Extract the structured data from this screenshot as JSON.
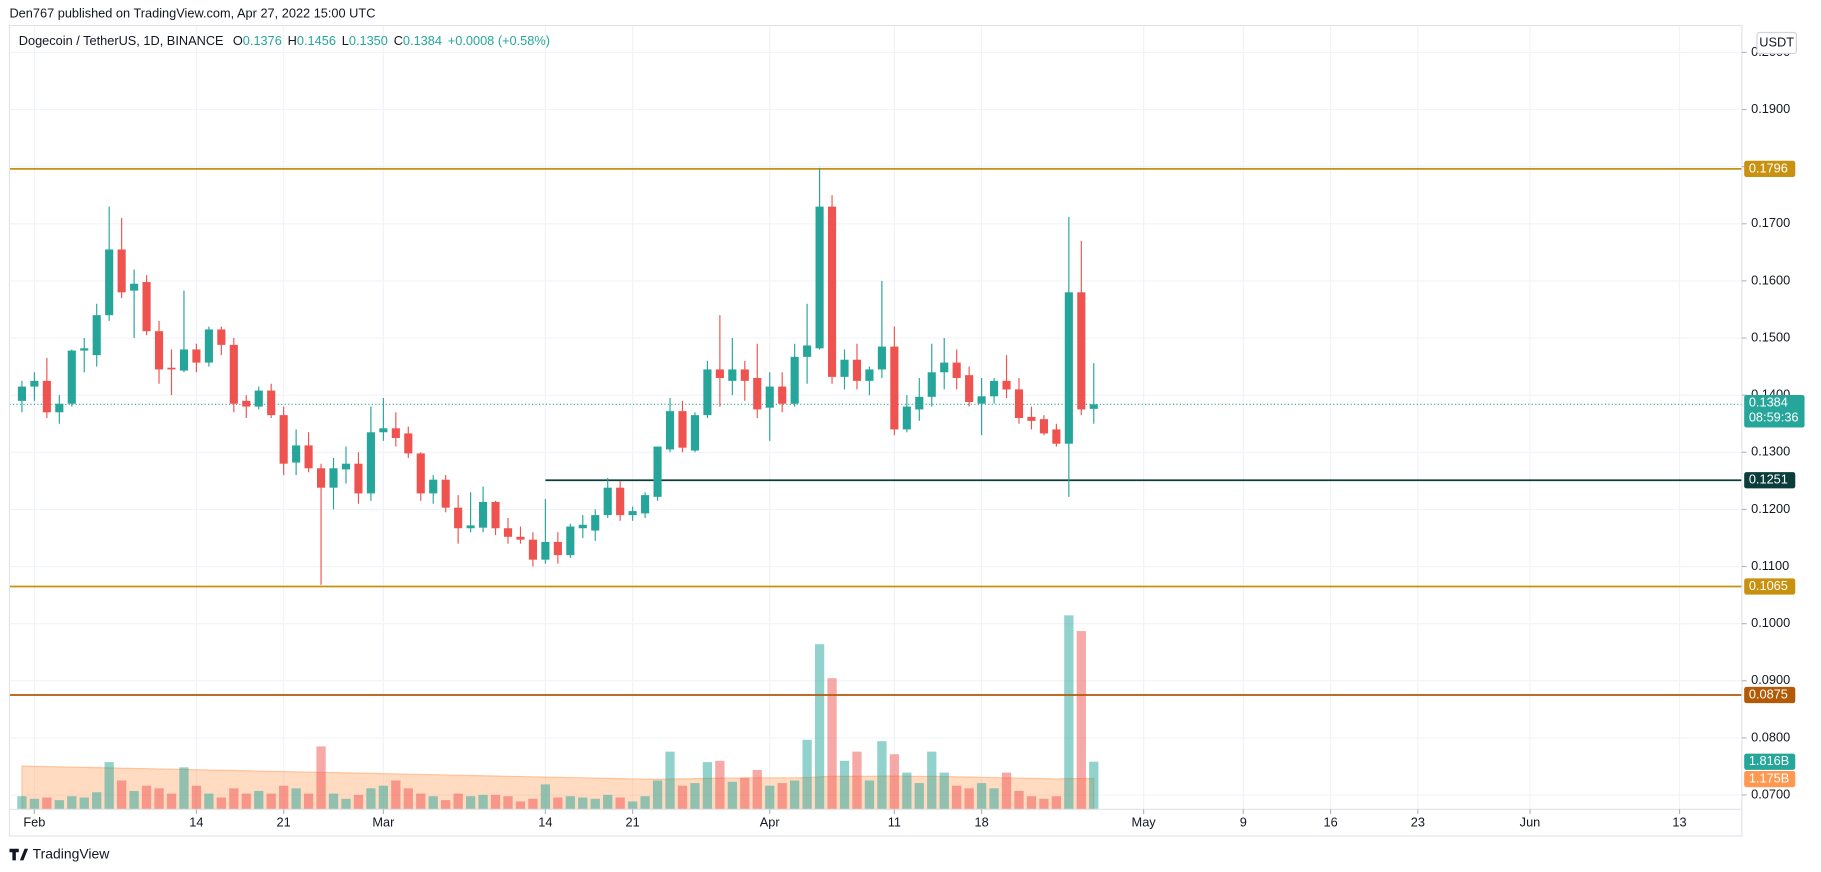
{
  "chart_data": {
    "type": "candlestick",
    "published": "Den767 published on TradingView.com, Apr 27, 2022 15:00 UTC",
    "symbol": "Dogecoin / TetherUS, 1D, BINANCE",
    "ohlc_header": [
      {
        "letter": "O",
        "text": "0.1376"
      },
      {
        "letter": "H",
        "text": "0.1456"
      },
      {
        "letter": "L",
        "text": "0.1350"
      },
      {
        "letter": "C",
        "text": "0.1384"
      }
    ],
    "change": "+0.0008 (+0.58%)",
    "currency": "USDT",
    "countdown": "08:59:36",
    "footer": "TradingView",
    "up_color": "#26a69a",
    "down_color": "#ef5350",
    "ylim": [
      0.0675,
      0.2047
    ],
    "yticks": [
      {
        "value": 0.07,
        "label": "0.0700"
      },
      {
        "value": 0.08,
        "label": "0.0800"
      },
      {
        "value": 0.09,
        "label": "0.0900"
      },
      {
        "value": 0.1,
        "label": "0.1000"
      },
      {
        "value": 0.11,
        "label": "0.1100"
      },
      {
        "value": 0.12,
        "label": "0.1200"
      },
      {
        "value": 0.13,
        "label": "0.1300"
      },
      {
        "value": 0.14,
        "label": "0.1400"
      },
      {
        "value": 0.15,
        "label": "0.1500"
      },
      {
        "value": 0.16,
        "label": "0.1600"
      },
      {
        "value": 0.17,
        "label": "0.1700"
      },
      {
        "value": 0.18,
        "label": "0.1800"
      },
      {
        "value": 0.19,
        "label": "0.1900"
      },
      {
        "value": 0.2,
        "label": "0.2000"
      }
    ],
    "xlim": [
      "2022-01-30",
      "2022-06-18"
    ],
    "xticks": [
      {
        "value": "2022-02-01",
        "label": "Feb"
      },
      {
        "value": "2022-02-14",
        "label": "14"
      },
      {
        "value": "2022-02-21",
        "label": "21"
      },
      {
        "value": "2022-03-01",
        "label": "Mar"
      },
      {
        "value": "2022-03-14",
        "label": "14"
      },
      {
        "value": "2022-03-21",
        "label": "21"
      },
      {
        "value": "2022-04-01",
        "label": "Apr"
      },
      {
        "value": "2022-04-11",
        "label": "11"
      },
      {
        "value": "2022-04-18",
        "label": "18"
      },
      {
        "value": "2022-05-01",
        "label": "May"
      },
      {
        "value": "2022-05-09",
        "label": "9"
      },
      {
        "value": "2022-05-16",
        "label": "16"
      },
      {
        "value": "2022-05-23",
        "label": "23"
      },
      {
        "value": "2022-06-01",
        "label": "Jun"
      },
      {
        "value": "2022-06-13",
        "label": "13"
      }
    ],
    "grid": true,
    "candles": {
      "dates": [
        "2022-01-31",
        "2022-02-01",
        "2022-02-02",
        "2022-02-03",
        "2022-02-04",
        "2022-02-05",
        "2022-02-06",
        "2022-02-07",
        "2022-02-08",
        "2022-02-09",
        "2022-02-10",
        "2022-02-11",
        "2022-02-12",
        "2022-02-13",
        "2022-02-14",
        "2022-02-15",
        "2022-02-16",
        "2022-02-17",
        "2022-02-18",
        "2022-02-19",
        "2022-02-20",
        "2022-02-21",
        "2022-02-22",
        "2022-02-23",
        "2022-02-24",
        "2022-02-25",
        "2022-02-26",
        "2022-02-27",
        "2022-02-28",
        "2022-03-01",
        "2022-03-02",
        "2022-03-03",
        "2022-03-04",
        "2022-03-05",
        "2022-03-06",
        "2022-03-07",
        "2022-03-08",
        "2022-03-09",
        "2022-03-10",
        "2022-03-11",
        "2022-03-12",
        "2022-03-13",
        "2022-03-14",
        "2022-03-15",
        "2022-03-16",
        "2022-03-17",
        "2022-03-18",
        "2022-03-19",
        "2022-03-20",
        "2022-03-21",
        "2022-03-22",
        "2022-03-23",
        "2022-03-24",
        "2022-03-25",
        "2022-03-26",
        "2022-03-27",
        "2022-03-28",
        "2022-03-29",
        "2022-03-30",
        "2022-03-31",
        "2022-04-01",
        "2022-04-02",
        "2022-04-03",
        "2022-04-04",
        "2022-04-05",
        "2022-04-06",
        "2022-04-07",
        "2022-04-08",
        "2022-04-09",
        "2022-04-10",
        "2022-04-11",
        "2022-04-12",
        "2022-04-13",
        "2022-04-14",
        "2022-04-15",
        "2022-04-16",
        "2022-04-17",
        "2022-04-18",
        "2022-04-19",
        "2022-04-20",
        "2022-04-21",
        "2022-04-22",
        "2022-04-23",
        "2022-04-24",
        "2022-04-25",
        "2022-04-26",
        "2022-04-27"
      ],
      "open": [
        0.139,
        0.1415,
        0.1425,
        0.137,
        0.1385,
        0.1478,
        0.147,
        0.154,
        0.1655,
        0.1583,
        0.1598,
        0.1512,
        0.1448,
        0.1443,
        0.148,
        0.1457,
        0.1515,
        0.1488,
        0.139,
        0.138,
        0.1408,
        0.1365,
        0.1282,
        0.1312,
        0.1272,
        0.1238,
        0.127,
        0.128,
        0.1228,
        0.1335,
        0.1342,
        0.1333,
        0.1298,
        0.1228,
        0.1252,
        0.1203,
        0.1167,
        0.1168,
        0.1213,
        0.1167,
        0.1152,
        0.1147,
        0.1112,
        0.1143,
        0.112,
        0.1167,
        0.1163,
        0.119,
        0.1238,
        0.119,
        0.1193,
        0.1222,
        0.1305,
        0.1372,
        0.1303,
        0.1365,
        0.1445,
        0.1425,
        0.1445,
        0.143,
        0.1378,
        0.1415,
        0.1385,
        0.1467,
        0.1482,
        0.173,
        0.1432,
        0.1462,
        0.1425,
        0.1445,
        0.1485,
        0.134,
        0.1375,
        0.1397,
        0.144,
        0.1457,
        0.1435,
        0.1385,
        0.1398,
        0.1425,
        0.141,
        0.1362,
        0.1358,
        0.134,
        0.1315,
        0.158,
        0.1376
      ],
      "high": [
        0.1425,
        0.144,
        0.1465,
        0.14,
        0.148,
        0.15,
        0.156,
        0.173,
        0.171,
        0.162,
        0.161,
        0.153,
        0.148,
        0.1583,
        0.149,
        0.152,
        0.152,
        0.15,
        0.14,
        0.1415,
        0.142,
        0.138,
        0.134,
        0.1335,
        0.128,
        0.129,
        0.131,
        0.13,
        0.138,
        0.1395,
        0.137,
        0.1345,
        0.13,
        0.126,
        0.126,
        0.1225,
        0.123,
        0.124,
        0.1215,
        0.1185,
        0.117,
        0.116,
        0.1218,
        0.116,
        0.1175,
        0.119,
        0.12,
        0.1255,
        0.125,
        0.1205,
        0.123,
        0.131,
        0.1395,
        0.139,
        0.137,
        0.146,
        0.154,
        0.15,
        0.146,
        0.149,
        0.144,
        0.144,
        0.149,
        0.156,
        0.1798,
        0.175,
        0.148,
        0.149,
        0.145,
        0.16,
        0.152,
        0.14,
        0.143,
        0.149,
        0.15,
        0.148,
        0.145,
        0.143,
        0.143,
        0.147,
        0.143,
        0.138,
        0.1365,
        0.135,
        0.1712,
        0.167,
        0.1456
      ],
      "low": [
        0.137,
        0.139,
        0.136,
        0.135,
        0.138,
        0.144,
        0.145,
        0.153,
        0.157,
        0.15,
        0.1505,
        0.142,
        0.14,
        0.144,
        0.144,
        0.145,
        0.147,
        0.137,
        0.136,
        0.1375,
        0.136,
        0.126,
        0.126,
        0.1265,
        0.1068,
        0.12,
        0.1245,
        0.121,
        0.1215,
        0.132,
        0.131,
        0.129,
        0.1215,
        0.121,
        0.1195,
        0.114,
        0.116,
        0.116,
        0.1155,
        0.114,
        0.114,
        0.11,
        0.1105,
        0.1105,
        0.1115,
        0.115,
        0.1145,
        0.1185,
        0.118,
        0.118,
        0.1185,
        0.1215,
        0.13,
        0.13,
        0.13,
        0.136,
        0.138,
        0.14,
        0.139,
        0.136,
        0.132,
        0.137,
        0.138,
        0.142,
        0.148,
        0.142,
        0.141,
        0.141,
        0.14,
        0.143,
        0.133,
        0.1335,
        0.1355,
        0.138,
        0.141,
        0.141,
        0.138,
        0.133,
        0.1385,
        0.1395,
        0.135,
        0.134,
        0.133,
        0.131,
        0.1222,
        0.1365,
        0.135
      ],
      "close": [
        0.1415,
        0.1425,
        0.137,
        0.1385,
        0.1478,
        0.1482,
        0.154,
        0.1655,
        0.158,
        0.1595,
        0.1512,
        0.1445,
        0.1445,
        0.148,
        0.1457,
        0.1515,
        0.1488,
        0.1385,
        0.138,
        0.1408,
        0.1365,
        0.128,
        0.1312,
        0.1272,
        0.1238,
        0.1272,
        0.128,
        0.1228,
        0.1335,
        0.1342,
        0.1325,
        0.1298,
        0.1228,
        0.1252,
        0.1203,
        0.1167,
        0.1172,
        0.1213,
        0.1167,
        0.1152,
        0.1147,
        0.1112,
        0.1143,
        0.112,
        0.117,
        0.1173,
        0.119,
        0.1238,
        0.119,
        0.1197,
        0.1225,
        0.131,
        0.1372,
        0.1308,
        0.1365,
        0.1445,
        0.143,
        0.1445,
        0.1425,
        0.1375,
        0.1415,
        0.1385,
        0.1467,
        0.1487,
        0.173,
        0.1432,
        0.1462,
        0.1425,
        0.1445,
        0.1485,
        0.134,
        0.138,
        0.1397,
        0.144,
        0.1457,
        0.143,
        0.1388,
        0.1398,
        0.1425,
        0.141,
        0.136,
        0.1355,
        0.1333,
        0.1315,
        0.158,
        0.1375,
        0.1384
      ]
    },
    "volume_ylim": [
      0,
      29.9
    ],
    "volume": {
      "values": [
        0.5,
        0.4,
        0.45,
        0.35,
        0.5,
        0.45,
        0.65,
        1.8,
        1.1,
        0.7,
        0.9,
        0.8,
        0.6,
        1.6,
        0.9,
        0.6,
        0.45,
        0.8,
        0.6,
        0.7,
        0.6,
        0.9,
        0.8,
        0.6,
        2.4,
        0.6,
        0.4,
        0.55,
        0.8,
        0.9,
        1.1,
        0.8,
        0.6,
        0.5,
        0.35,
        0.6,
        0.5,
        0.55,
        0.55,
        0.5,
        0.3,
        0.4,
        0.95,
        0.45,
        0.5,
        0.45,
        0.4,
        0.55,
        0.45,
        0.3,
        0.5,
        1.1,
        2.2,
        0.9,
        1.0,
        1.8,
        1.85,
        1.05,
        1.2,
        1.5,
        0.9,
        1.0,
        1.1,
        2.65,
        6.3,
        5.0,
        1.85,
        2.2,
        1.1,
        2.6,
        2.1,
        1.4,
        1.0,
        2.2,
        1.4,
        0.9,
        0.8,
        1.0,
        0.8,
        1.4,
        0.7,
        0.5,
        0.4,
        0.5,
        7.4,
        6.8,
        1.816
      ],
      "value_labels": [
        null,
        null,
        null,
        null,
        null,
        null,
        null,
        null,
        null,
        null,
        null,
        null,
        null,
        null,
        null,
        null,
        null,
        null,
        null,
        null,
        null,
        null,
        null,
        null,
        null,
        null,
        null,
        null,
        null,
        null,
        null,
        null,
        null,
        null,
        null,
        null,
        null,
        null,
        null,
        null,
        null,
        null,
        null,
        null,
        null,
        null,
        null,
        null,
        null,
        null,
        null,
        null,
        null,
        null,
        null,
        null,
        null,
        null,
        null,
        null,
        null,
        null,
        null,
        null,
        null,
        null,
        null,
        null,
        null,
        null,
        null,
        null,
        null,
        null,
        null,
        null,
        null,
        null,
        null,
        null,
        null,
        null,
        null,
        null,
        null,
        null,
        "1.816B"
      ]
    },
    "volume_ma": {
      "color": "#ff9850",
      "values": [
        1.65,
        1.64,
        1.63,
        1.62,
        1.61,
        1.6,
        1.59,
        1.58,
        1.57,
        1.56,
        1.55,
        1.54,
        1.53,
        1.52,
        1.51,
        1.5,
        1.49,
        1.48,
        1.47,
        1.46,
        1.45,
        1.44,
        1.43,
        1.42,
        1.41,
        1.4,
        1.39,
        1.38,
        1.37,
        1.36,
        1.35,
        1.34,
        1.33,
        1.32,
        1.31,
        1.3,
        1.29,
        1.28,
        1.27,
        1.26,
        1.25,
        1.24,
        1.23,
        1.22,
        1.21,
        1.2,
        1.19,
        1.18,
        1.17,
        1.16,
        1.15,
        1.15,
        1.16,
        1.16,
        1.17,
        1.18,
        1.19,
        1.19,
        1.2,
        1.2,
        1.2,
        1.2,
        1.2,
        1.21,
        1.24,
        1.26,
        1.26,
        1.26,
        1.26,
        1.27,
        1.27,
        1.26,
        1.26,
        1.26,
        1.25,
        1.24,
        1.23,
        1.22,
        1.21,
        1.2,
        1.19,
        1.18,
        1.17,
        1.16,
        1.17,
        1.17,
        1.175
      ],
      "value_labels": [
        null,
        null,
        null,
        null,
        null,
        null,
        null,
        null,
        null,
        null,
        null,
        null,
        null,
        null,
        null,
        null,
        null,
        null,
        null,
        null,
        null,
        null,
        null,
        null,
        null,
        null,
        null,
        null,
        null,
        null,
        null,
        null,
        null,
        null,
        null,
        null,
        null,
        null,
        null,
        null,
        null,
        null,
        null,
        null,
        null,
        null,
        null,
        null,
        null,
        null,
        null,
        null,
        null,
        null,
        null,
        null,
        null,
        null,
        null,
        null,
        null,
        null,
        null,
        null,
        null,
        null,
        null,
        null,
        null,
        null,
        null,
        null,
        null,
        null,
        null,
        null,
        null,
        null,
        null,
        null,
        null,
        null,
        null,
        null,
        null,
        null,
        "1.175B"
      ]
    },
    "levels": [
      {
        "value": 0.1796,
        "color": "#c8910f",
        "from": null
      },
      {
        "value": 0.1251,
        "color": "#0b3d3b",
        "from": "2022-03-14"
      },
      {
        "value": 0.1065,
        "color": "#c8910f",
        "from": null
      },
      {
        "value": 0.0875,
        "color": "#b35a06",
        "from": null
      }
    ]
  }
}
